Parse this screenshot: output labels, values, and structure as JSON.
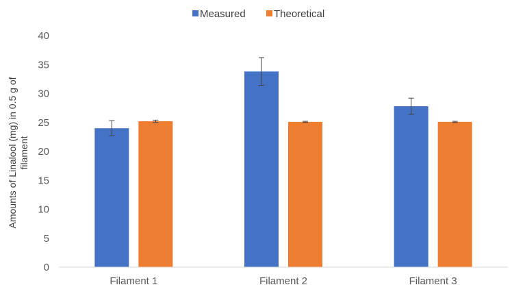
{
  "chart_data": {
    "type": "bar",
    "title": "",
    "xlabel": "",
    "ylabel_lines": [
      "Amounts of Linalool (mg) in 0.5 g of",
      "filament"
    ],
    "categories": [
      "Filament 1",
      "Filament 2",
      "Filament 3"
    ],
    "ylim": [
      0,
      40
    ],
    "yticks": [
      0,
      5,
      10,
      15,
      20,
      25,
      30,
      35,
      40
    ],
    "grid": false,
    "legend_position": "top-center",
    "series": [
      {
        "name": "Measured",
        "color": "#4472C4",
        "values": [
          24.0,
          33.8,
          27.8
        ],
        "errors": [
          1.3,
          2.4,
          1.4
        ]
      },
      {
        "name": "Theoretical",
        "color": "#ED7D31",
        "values": [
          25.2,
          25.1,
          25.1
        ],
        "errors": [
          0.2,
          0.1,
          0.1
        ]
      }
    ]
  }
}
